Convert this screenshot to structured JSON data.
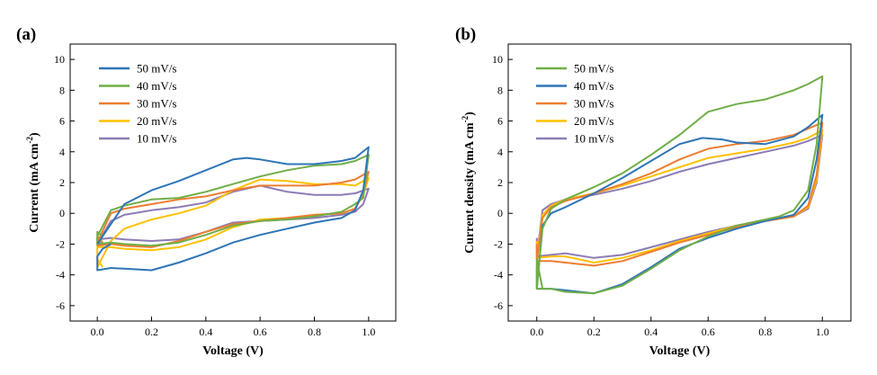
{
  "chart_data": [
    {
      "type": "line",
      "panel_label": "(a)",
      "xlabel": "Voltage (V)",
      "ylabel": "Current (mA cm",
      "ylabel_sup": "-2",
      "ylabel_end": ")",
      "xlim": [
        -0.1,
        1.1
      ],
      "ylim": [
        -7,
        11
      ],
      "xticks": [
        0.0,
        0.2,
        0.4,
        0.6,
        0.8,
        1.0
      ],
      "xtick_labels": [
        "0.0",
        "0.2",
        "0.4",
        "0.6",
        "0.8",
        "1.0"
      ],
      "yticks": [
        -6,
        -4,
        -2,
        0,
        2,
        4,
        6,
        8,
        10
      ],
      "ytick_labels": [
        "-6",
        "-4",
        "-2",
        "0",
        "2",
        "4",
        "6",
        "8",
        "10"
      ],
      "grid": false,
      "legend_position": "top-left",
      "series": [
        {
          "name": "50 mV/s",
          "color": "#2e75b6",
          "x": [
            0.0,
            0.1,
            0.2,
            0.3,
            0.4,
            0.5,
            0.55,
            0.6,
            0.7,
            0.8,
            0.9,
            0.95,
            1.0,
            0.98,
            0.95,
            0.9,
            0.8,
            0.7,
            0.6,
            0.5,
            0.4,
            0.3,
            0.2,
            0.1,
            0.05,
            0.0,
            0.0,
            0.02,
            0.05
          ],
          "y": [
            -2.0,
            0.6,
            1.5,
            2.1,
            2.8,
            3.5,
            3.6,
            3.5,
            3.2,
            3.2,
            3.4,
            3.6,
            4.3,
            1.5,
            0.2,
            -0.3,
            -0.6,
            -1.0,
            -1.4,
            -1.9,
            -2.6,
            -3.2,
            -3.7,
            -3.6,
            -3.55,
            -3.7,
            -2.8,
            -2.3,
            -2.0
          ]
        },
        {
          "name": "40 mV/s",
          "color": "#70ad47",
          "x": [
            0.0,
            0.05,
            0.1,
            0.2,
            0.3,
            0.4,
            0.5,
            0.6,
            0.7,
            0.8,
            0.9,
            0.95,
            1.0,
            0.98,
            0.95,
            0.9,
            0.8,
            0.7,
            0.6,
            0.5,
            0.4,
            0.3,
            0.2,
            0.1,
            0.05,
            0.0,
            0.0,
            0.02
          ],
          "y": [
            -1.5,
            0.2,
            0.5,
            0.9,
            1.0,
            1.4,
            1.9,
            2.4,
            2.8,
            3.1,
            3.2,
            3.4,
            3.8,
            1.0,
            0.6,
            0.1,
            -0.2,
            -0.4,
            -0.5,
            -0.8,
            -1.4,
            -1.9,
            -2.1,
            -2.0,
            -1.9,
            -2.0,
            -1.2,
            -1.5
          ]
        },
        {
          "name": "30 mV/s",
          "color": "#ed7d31",
          "x": [
            0.0,
            0.05,
            0.1,
            0.2,
            0.3,
            0.4,
            0.5,
            0.6,
            0.7,
            0.8,
            0.9,
            0.95,
            1.0,
            0.98,
            0.95,
            0.9,
            0.8,
            0.7,
            0.6,
            0.5,
            0.4,
            0.3,
            0.2,
            0.1,
            0.05,
            0.0,
            0.0,
            0.02
          ],
          "y": [
            -1.9,
            0.0,
            0.3,
            0.6,
            0.9,
            1.1,
            1.5,
            1.8,
            1.8,
            1.8,
            2.0,
            2.2,
            2.7,
            1.3,
            0.3,
            0.0,
            -0.1,
            -0.3,
            -0.5,
            -0.7,
            -1.2,
            -1.8,
            -2.2,
            -2.1,
            -2.0,
            -2.1,
            -1.5,
            -1.9
          ]
        },
        {
          "name": "20 mV/s",
          "color": "#ffc000",
          "x": [
            0.0,
            0.05,
            0.1,
            0.2,
            0.3,
            0.4,
            0.5,
            0.6,
            0.7,
            0.8,
            0.9,
            0.95,
            1.0,
            0.98,
            0.95,
            0.9,
            0.8,
            0.7,
            0.6,
            0.5,
            0.4,
            0.3,
            0.2,
            0.1,
            0.05,
            0.0,
            0.0,
            0.02
          ],
          "y": [
            -3.5,
            -1.8,
            -1.0,
            -0.4,
            0.0,
            0.5,
            1.5,
            2.2,
            2.1,
            1.9,
            1.9,
            1.8,
            2.3,
            1.2,
            0.3,
            0.0,
            -0.1,
            -0.3,
            -0.4,
            -0.9,
            -1.7,
            -2.2,
            -2.4,
            -2.3,
            -2.2,
            -2.2,
            -3.0,
            -3.5
          ]
        },
        {
          "name": "10 mV/s",
          "color": "#8c7bb5",
          "x": [
            0.0,
            0.05,
            0.1,
            0.2,
            0.3,
            0.4,
            0.5,
            0.6,
            0.7,
            0.8,
            0.9,
            0.95,
            1.0,
            0.98,
            0.95,
            0.9,
            0.8,
            0.7,
            0.6,
            0.5,
            0.4,
            0.3,
            0.2,
            0.1,
            0.05,
            0.0,
            0.0,
            0.02
          ],
          "y": [
            -2.0,
            -0.5,
            -0.1,
            0.2,
            0.4,
            0.7,
            1.4,
            1.8,
            1.4,
            1.2,
            1.2,
            1.3,
            1.6,
            0.6,
            0.1,
            -0.1,
            -0.3,
            -0.4,
            -0.5,
            -0.6,
            -1.2,
            -1.7,
            -1.8,
            -1.7,
            -1.6,
            -1.7,
            -1.8,
            -2.0
          ]
        }
      ]
    },
    {
      "type": "line",
      "panel_label": "(b)",
      "xlabel": "Voltage (V)",
      "ylabel": "Current density (mA cm",
      "ylabel_sup": "-2",
      "ylabel_end": ")",
      "xlim": [
        -0.1,
        1.1
      ],
      "ylim": [
        -7,
        11
      ],
      "xticks": [
        0.0,
        0.2,
        0.4,
        0.6,
        0.8,
        1.0
      ],
      "xtick_labels": [
        "0.0",
        "0.2",
        "0.4",
        "0.6",
        "0.8",
        "1.0"
      ],
      "yticks": [
        -6,
        -4,
        -2,
        0,
        2,
        4,
        6,
        8,
        10
      ],
      "ytick_labels": [
        "-6",
        "-4",
        "-2",
        "0",
        "2",
        "4",
        "6",
        "8",
        "10"
      ],
      "grid": false,
      "legend_position": "top-left",
      "series": [
        {
          "name": "50 mV/s",
          "color": "#70ad47",
          "x": [
            0.0,
            0.02,
            0.05,
            0.1,
            0.2,
            0.3,
            0.4,
            0.5,
            0.6,
            0.7,
            0.8,
            0.9,
            0.95,
            1.0,
            0.98,
            0.95,
            0.9,
            0.85,
            0.8,
            0.7,
            0.6,
            0.5,
            0.4,
            0.3,
            0.2,
            0.1,
            0.05,
            0.0,
            0.0,
            0.02
          ],
          "y": [
            -4.9,
            -1.0,
            0.3,
            0.9,
            1.7,
            2.6,
            3.8,
            5.1,
            6.6,
            7.1,
            7.4,
            8.0,
            8.4,
            8.9,
            4.5,
            1.5,
            0.2,
            -0.2,
            -0.4,
            -0.8,
            -1.5,
            -2.4,
            -3.6,
            -4.7,
            -5.2,
            -5.1,
            -4.9,
            -4.9,
            -3.0,
            -4.9
          ]
        },
        {
          "name": "40 mV/s",
          "color": "#2e75b6",
          "x": [
            0.0,
            0.02,
            0.05,
            0.1,
            0.2,
            0.3,
            0.4,
            0.5,
            0.58,
            0.65,
            0.7,
            0.8,
            0.9,
            0.95,
            1.0,
            0.98,
            0.95,
            0.9,
            0.8,
            0.7,
            0.6,
            0.5,
            0.4,
            0.3,
            0.2,
            0.1,
            0.05,
            0.0,
            0.0
          ],
          "y": [
            -4.9,
            -0.8,
            0.0,
            0.4,
            1.3,
            2.3,
            3.4,
            4.5,
            4.9,
            4.8,
            4.6,
            4.5,
            5.0,
            5.6,
            6.4,
            3.5,
            1.0,
            -0.1,
            -0.5,
            -1.0,
            -1.6,
            -2.3,
            -3.5,
            -4.6,
            -5.2,
            -5.0,
            -4.9,
            -4.9,
            -3.5
          ]
        },
        {
          "name": "30 mV/s",
          "color": "#ed7d31",
          "x": [
            0.0,
            0.02,
            0.05,
            0.1,
            0.2,
            0.3,
            0.4,
            0.5,
            0.6,
            0.7,
            0.8,
            0.9,
            0.95,
            1.0,
            0.98,
            0.95,
            0.9,
            0.8,
            0.7,
            0.6,
            0.5,
            0.4,
            0.3,
            0.2,
            0.1,
            0.05,
            0.0,
            0.0
          ],
          "y": [
            -3.1,
            -0.3,
            0.4,
            0.8,
            1.3,
            1.9,
            2.6,
            3.5,
            4.2,
            4.5,
            4.7,
            5.1,
            5.5,
            5.9,
            2.5,
            0.5,
            -0.2,
            -0.5,
            -0.9,
            -1.4,
            -1.9,
            -2.5,
            -3.1,
            -3.4,
            -3.2,
            -3.1,
            -3.1,
            -2.0
          ]
        },
        {
          "name": "20 mV/s",
          "color": "#ffc000",
          "x": [
            0.0,
            0.02,
            0.05,
            0.1,
            0.2,
            0.3,
            0.4,
            0.5,
            0.6,
            0.7,
            0.8,
            0.9,
            0.95,
            1.0,
            0.98,
            0.95,
            0.9,
            0.8,
            0.7,
            0.6,
            0.5,
            0.4,
            0.3,
            0.2,
            0.1,
            0.05,
            0.0,
            0.0
          ],
          "y": [
            -2.9,
            -0.1,
            0.5,
            0.9,
            1.3,
            1.8,
            2.4,
            3.0,
            3.6,
            3.9,
            4.2,
            4.6,
            4.9,
            5.4,
            2.2,
            0.4,
            -0.2,
            -0.5,
            -0.8,
            -1.3,
            -1.8,
            -2.4,
            -2.9,
            -3.2,
            -2.8,
            -2.8,
            -2.9,
            -1.8
          ]
        },
        {
          "name": "10 mV/s",
          "color": "#8c7bb5",
          "x": [
            0.0,
            0.02,
            0.05,
            0.1,
            0.2,
            0.3,
            0.4,
            0.5,
            0.6,
            0.7,
            0.8,
            0.9,
            0.95,
            1.0,
            0.98,
            0.95,
            0.9,
            0.8,
            0.7,
            0.6,
            0.5,
            0.4,
            0.3,
            0.2,
            0.1,
            0.05,
            0.0,
            0.0
          ],
          "y": [
            -2.8,
            0.2,
            0.6,
            0.9,
            1.2,
            1.6,
            2.1,
            2.7,
            3.2,
            3.6,
            4.0,
            4.4,
            4.7,
            5.1,
            2.0,
            0.3,
            -0.2,
            -0.5,
            -0.8,
            -1.2,
            -1.7,
            -2.2,
            -2.7,
            -2.9,
            -2.6,
            -2.7,
            -2.8,
            -1.6
          ]
        }
      ]
    }
  ]
}
